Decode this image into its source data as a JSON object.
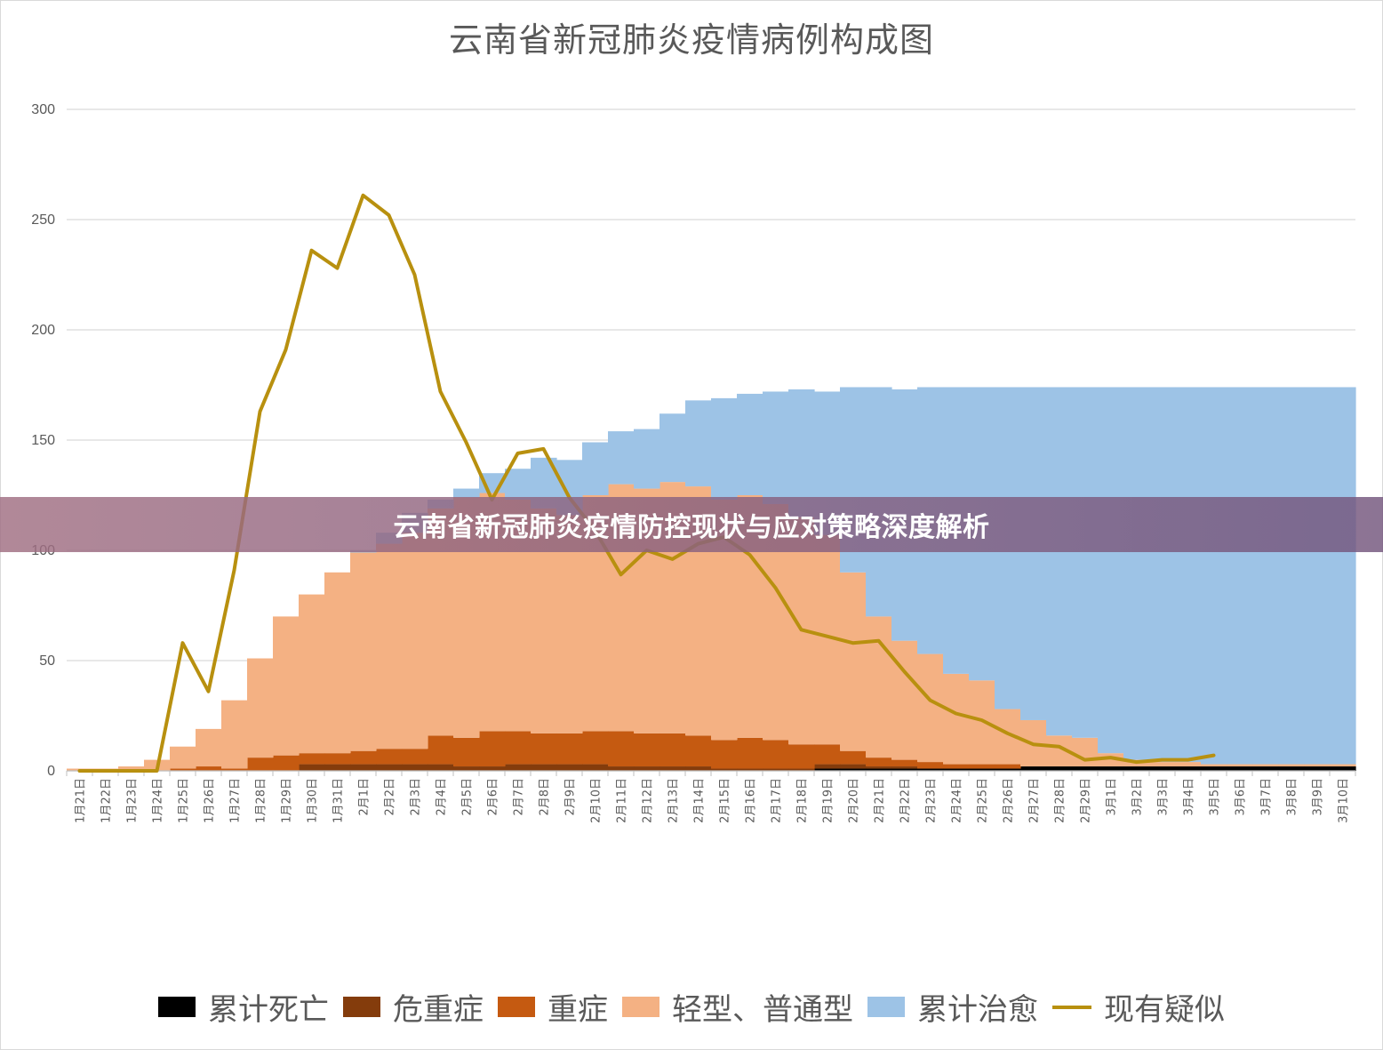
{
  "chart_data": {
    "type": "area",
    "title": "云南省新冠肺炎疫情病例构成图",
    "ylim": [
      0,
      300
    ],
    "yticks": [
      0,
      50,
      100,
      150,
      200,
      250,
      300
    ],
    "grid": true,
    "legend_position": "bottom",
    "categories": [
      "1月21日",
      "1月22日",
      "1月23日",
      "1月24日",
      "1月25日",
      "1月26日",
      "1月27日",
      "1月28日",
      "1月29日",
      "1月30日",
      "1月31日",
      "2月1日",
      "2月2日",
      "2月3日",
      "2月4日",
      "2月5日",
      "2月6日",
      "2月7日",
      "2月8日",
      "2月9日",
      "2月10日",
      "2月11日",
      "2月12日",
      "2月13日",
      "2月14日",
      "2月15日",
      "2月16日",
      "2月17日",
      "2月18日",
      "2月19日",
      "2月20日",
      "2月21日",
      "2月22日",
      "2月23日",
      "2月24日",
      "2月25日",
      "2月26日",
      "2月27日",
      "2月28日",
      "2月29日",
      "3月1日",
      "3月2日",
      "3月3日",
      "3月4日",
      "3月5日",
      "3月6日",
      "3月7日",
      "3月8日",
      "3月9日",
      "3月10日"
    ],
    "series": [
      {
        "name": "累计死亡",
        "kind": "stacked-area",
        "color": "#000000",
        "values": [
          0,
          0,
          0,
          0,
          0,
          0,
          0,
          0,
          0,
          0,
          0,
          0,
          0,
          0,
          0,
          0,
          0,
          0,
          0,
          0,
          0,
          0,
          0,
          0,
          0,
          0,
          0,
          0,
          0,
          1,
          1,
          1,
          1,
          1,
          1,
          1,
          1,
          2,
          2,
          2,
          2,
          2,
          2,
          2,
          2,
          2,
          2,
          2,
          2,
          2
        ]
      },
      {
        "name": "危重症",
        "kind": "stacked-area",
        "color": "#843c0c",
        "values": [
          0,
          0,
          0,
          0,
          0,
          0,
          0,
          0,
          0,
          3,
          3,
          3,
          3,
          3,
          3,
          2,
          2,
          3,
          3,
          3,
          3,
          2,
          2,
          2,
          2,
          1,
          1,
          1,
          1,
          2,
          2,
          1,
          1,
          0,
          0,
          0,
          0,
          0,
          0,
          0,
          0,
          0,
          0,
          0,
          0,
          0,
          0,
          0,
          0,
          0
        ]
      },
      {
        "name": "重症",
        "kind": "stacked-area",
        "color": "#c55a11",
        "values": [
          0,
          0,
          0,
          0,
          1,
          2,
          1,
          6,
          7,
          5,
          5,
          6,
          7,
          7,
          13,
          13,
          16,
          15,
          14,
          14,
          15,
          16,
          15,
          15,
          14,
          13,
          14,
          13,
          11,
          9,
          6,
          4,
          3,
          3,
          2,
          2,
          2,
          0,
          0,
          0,
          0,
          0,
          0,
          0,
          0,
          0,
          0,
          0,
          0,
          0
        ]
      },
      {
        "name": "轻型、普通型",
        "kind": "stacked-area",
        "color": "#f4b183",
        "values": [
          1,
          1,
          2,
          5,
          10,
          17,
          31,
          45,
          63,
          72,
          82,
          90,
          93,
          98,
          103,
          109,
          108,
          105,
          102,
          99,
          107,
          112,
          111,
          114,
          113,
          109,
          110,
          107,
          103,
          95,
          81,
          64,
          54,
          49,
          41,
          38,
          25,
          21,
          14,
          13,
          6,
          3,
          2,
          2,
          1,
          1,
          1,
          1,
          1,
          1
        ]
      },
      {
        "name": "累计治愈",
        "kind": "stacked-area",
        "color": "#9dc3e6",
        "values": [
          0,
          0,
          0,
          0,
          0,
          0,
          0,
          0,
          0,
          0,
          0,
          1,
          5,
          9,
          4,
          4,
          9,
          14,
          23,
          25,
          24,
          24,
          27,
          31,
          39,
          46,
          46,
          51,
          58,
          65,
          84,
          104,
          114,
          121,
          130,
          133,
          146,
          151,
          158,
          159,
          166,
          169,
          170,
          170,
          171,
          171,
          171,
          171,
          171,
          171
        ]
      },
      {
        "name": "现有疑似",
        "kind": "line",
        "color": "#b8900f",
        "values": [
          0,
          0,
          0,
          0,
          58,
          36,
          91,
          163,
          191,
          236,
          228,
          261,
          252,
          225,
          172,
          149,
          123,
          144,
          146,
          124,
          109,
          89,
          100,
          96,
          103,
          106,
          98,
          83,
          64,
          61,
          58,
          59,
          45,
          32,
          26,
          23,
          17,
          12,
          11,
          5,
          6,
          4,
          5,
          5,
          7,
          null,
          null,
          null,
          null,
          null
        ]
      }
    ]
  },
  "banner": {
    "text": "云南省新冠肺炎疫情防控现状与应对策略深度解析"
  }
}
